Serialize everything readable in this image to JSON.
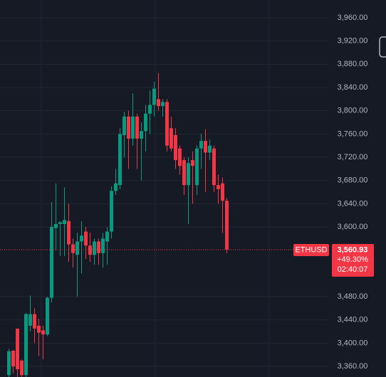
{
  "chart_data": {
    "type": "candlestick",
    "up_color": "#089981",
    "down_color": "#f23645",
    "open": [
      3345,
      3387,
      3425,
      3370,
      3345,
      3430,
      3450,
      3430,
      3422,
      3415,
      3478,
      3598,
      3605,
      3605,
      3610,
      3570,
      3552,
      3575,
      3592,
      3568,
      3552,
      3575,
      3555,
      3575,
      3592,
      3662,
      3672,
      3758,
      3790,
      3752,
      3790,
      3752,
      3765,
      3795,
      3810,
      3820,
      3808,
      3815,
      3770,
      3758,
      3735,
      3715,
      3672,
      3715,
      3672,
      3735,
      3748,
      3728,
      3735,
      3672,
      3675,
      3645
    ],
    "high": [
      3390,
      3388,
      3425,
      3372,
      3452,
      3482,
      3460,
      3442,
      3430,
      3480,
      3643,
      3675,
      3610,
      3668,
      3640,
      3580,
      3590,
      3610,
      3600,
      3590,
      3580,
      3580,
      3590,
      3600,
      3670,
      3700,
      3770,
      3798,
      3800,
      3830,
      3795,
      3780,
      3810,
      3835,
      3850,
      3865,
      3820,
      3820,
      3790,
      3770,
      3740,
      3720,
      3720,
      3730,
      3740,
      3760,
      3768,
      3750,
      3740,
      3690,
      3685,
      3650
    ],
    "low": [
      3342,
      3348,
      3342,
      3342,
      3342,
      3420,
      3400,
      3378,
      3372,
      3412,
      3470,
      3560,
      3550,
      3550,
      3540,
      3530,
      3480,
      3520,
      3545,
      3540,
      3535,
      3535,
      3530,
      3535,
      3580,
      3655,
      3665,
      3720,
      3700,
      3740,
      3700,
      3680,
      3730,
      3760,
      3790,
      3800,
      3790,
      3730,
      3730,
      3700,
      3690,
      3655,
      3605,
      3640,
      3655,
      3700,
      3660,
      3715,
      3660,
      3640,
      3590,
      3555
    ],
    "close": [
      3386,
      3360,
      3355,
      3345,
      3450,
      3450,
      3425,
      3418,
      3415,
      3478,
      3600,
      3605,
      3608,
      3612,
      3570,
      3555,
      3575,
      3585,
      3568,
      3552,
      3575,
      3555,
      3580,
      3592,
      3662,
      3675,
      3760,
      3790,
      3752,
      3790,
      3752,
      3765,
      3795,
      3810,
      3838,
      3808,
      3815,
      3740,
      3735,
      3715,
      3705,
      3672,
      3710,
      3705,
      3735,
      3748,
      3728,
      3740,
      3672,
      3665,
      3645,
      3560.93
    ],
    "ylim": [
      3341.7,
      3990.6
    ],
    "yticks": [
      {
        "value": 3960,
        "label": "3,960.00"
      },
      {
        "value": 3920,
        "label": "3,920.00"
      },
      {
        "value": 3880,
        "label": "3,880.00"
      },
      {
        "value": 3840,
        "label": "3,840.00"
      },
      {
        "value": 3800,
        "label": "3,800.00"
      },
      {
        "value": 3760,
        "label": "3,760.00"
      },
      {
        "value": 3720,
        "label": "3,720.00"
      },
      {
        "value": 3680,
        "label": "3,680.00"
      },
      {
        "value": 3640,
        "label": "3,640.00"
      },
      {
        "value": 3600,
        "label": "3,600.00"
      },
      {
        "value": 3480,
        "label": "3,480.00"
      },
      {
        "value": 3440,
        "label": "3,440.00"
      },
      {
        "value": 3400,
        "label": "3,400.00"
      },
      {
        "value": 3360,
        "label": "3,360.00"
      }
    ],
    "grid": true,
    "price_badge": {
      "symbol": "ETHUSD",
      "price": "3,560.93",
      "change": "+49.30%",
      "countdown": "02:40:07"
    }
  }
}
